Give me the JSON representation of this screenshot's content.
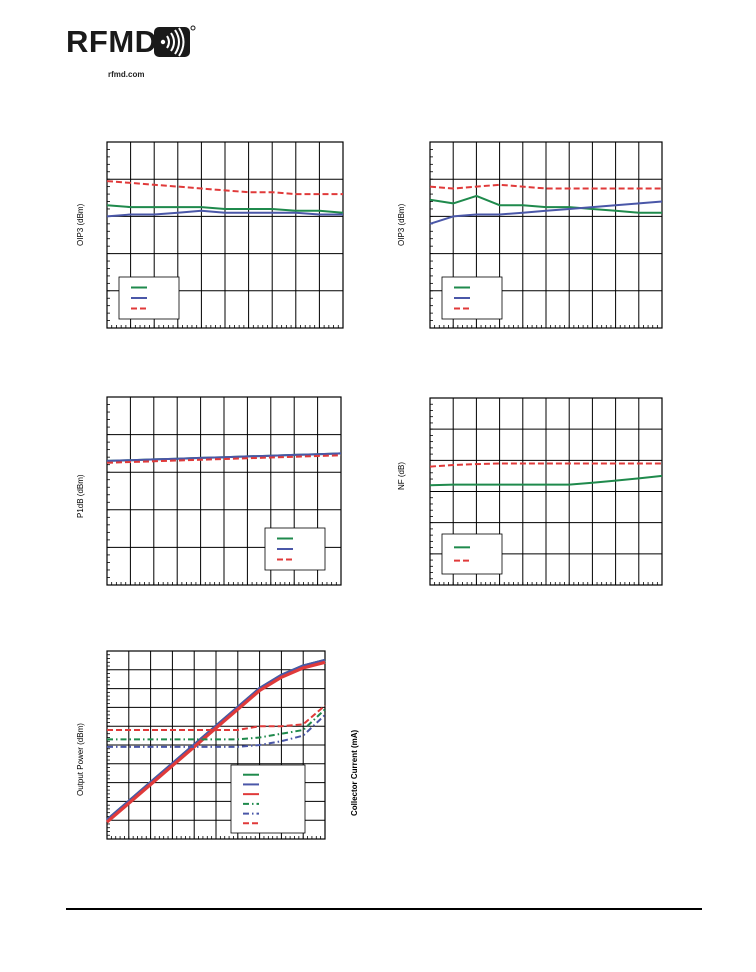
{
  "header": {
    "logo_text": "RFMD",
    "site": "rfmd.com"
  },
  "colors": {
    "green": "#1f8a4c",
    "blue": "#4a57a8",
    "red": "#e03a3a",
    "grid": "#000000"
  },
  "chart_data": [
    {
      "type": "line",
      "ylabel": "OIP3 (dBm)",
      "x": [
        0,
        1,
        2,
        3,
        4,
        5,
        6,
        7,
        8,
        9,
        10
      ],
      "ylim": [
        0,
        10
      ],
      "grid": true,
      "legend": "bottom-left",
      "series": [
        {
          "color": "green",
          "style": "solid",
          "values": [
            6.6,
            6.5,
            6.5,
            6.5,
            6.5,
            6.4,
            6.4,
            6.4,
            6.3,
            6.3,
            6.2
          ]
        },
        {
          "color": "blue",
          "style": "solid",
          "values": [
            6.0,
            6.1,
            6.1,
            6.2,
            6.3,
            6.2,
            6.2,
            6.2,
            6.2,
            6.1,
            6.1
          ]
        },
        {
          "color": "red",
          "style": "dashed",
          "values": [
            7.9,
            7.8,
            7.7,
            7.6,
            7.5,
            7.4,
            7.3,
            7.3,
            7.2,
            7.2,
            7.2
          ]
        }
      ]
    },
    {
      "type": "line",
      "ylabel": "OIP3 (dBm)",
      "x": [
        0,
        1,
        2,
        3,
        4,
        5,
        6,
        7,
        8,
        9,
        10
      ],
      "ylim": [
        0,
        10
      ],
      "grid": true,
      "legend": "bottom-left",
      "series": [
        {
          "color": "green",
          "style": "solid",
          "values": [
            6.9,
            6.7,
            7.1,
            6.6,
            6.6,
            6.5,
            6.5,
            6.4,
            6.3,
            6.2,
            6.2
          ]
        },
        {
          "color": "blue",
          "style": "solid",
          "values": [
            5.6,
            6.0,
            6.1,
            6.1,
            6.2,
            6.3,
            6.4,
            6.5,
            6.6,
            6.7,
            6.8
          ]
        },
        {
          "color": "red",
          "style": "dashed",
          "values": [
            7.6,
            7.5,
            7.6,
            7.7,
            7.6,
            7.5,
            7.5,
            7.5,
            7.5,
            7.5,
            7.5
          ]
        }
      ]
    },
    {
      "type": "line",
      "ylabel": "P1dB (dBm)",
      "x": [
        0,
        1,
        2,
        3,
        4,
        5,
        6,
        7,
        8,
        9,
        10
      ],
      "ylim": [
        0,
        5
      ],
      "grid": true,
      "legend": "bottom-right",
      "series": [
        {
          "color": "green",
          "style": "solid",
          "values": [
            3.3,
            3.32,
            3.34,
            3.36,
            3.38,
            3.4,
            3.42,
            3.44,
            3.46,
            3.48,
            3.5
          ]
        },
        {
          "color": "blue",
          "style": "solid",
          "values": [
            3.3,
            3.32,
            3.34,
            3.36,
            3.38,
            3.4,
            3.42,
            3.44,
            3.46,
            3.48,
            3.5
          ]
        },
        {
          "color": "red",
          "style": "dashed",
          "values": [
            3.25,
            3.27,
            3.29,
            3.31,
            3.33,
            3.35,
            3.37,
            3.39,
            3.41,
            3.43,
            3.45
          ]
        }
      ]
    },
    {
      "type": "line",
      "ylabel": "NF (dB)",
      "x": [
        0,
        1,
        2,
        3,
        4,
        5,
        6,
        7,
        8,
        9,
        10
      ],
      "ylim": [
        0,
        6
      ],
      "grid": true,
      "legend": "bottom-left",
      "series": [
        {
          "color": "green",
          "style": "solid",
          "values": [
            3.2,
            3.22,
            3.22,
            3.22,
            3.22,
            3.22,
            3.22,
            3.28,
            3.35,
            3.42,
            3.5
          ]
        },
        {
          "color": "red",
          "style": "dashed",
          "values": [
            3.8,
            3.85,
            3.88,
            3.9,
            3.9,
            3.9,
            3.9,
            3.9,
            3.9,
            3.9,
            3.9
          ]
        }
      ]
    },
    {
      "type": "line",
      "ylabel": "Output Power (dBm)",
      "y2label": "Collector Current (mA)",
      "x": [
        0,
        1,
        2,
        3,
        4,
        5,
        6,
        7,
        8,
        9,
        10
      ],
      "ylim": [
        0,
        10
      ],
      "grid": true,
      "legend": "bottom-right",
      "series": [
        {
          "color": "green",
          "style": "solid",
          "values": [
            1.0,
            2.0,
            3.0,
            4.0,
            5.0,
            6.0,
            7.0,
            8.0,
            8.7,
            9.2,
            9.5
          ]
        },
        {
          "color": "blue",
          "style": "solid",
          "values": [
            1.0,
            2.0,
            3.0,
            4.0,
            5.0,
            6.0,
            7.0,
            8.0,
            8.7,
            9.2,
            9.5
          ]
        },
        {
          "color": "red",
          "style": "solid",
          "values": [
            0.9,
            1.9,
            2.9,
            3.9,
            4.9,
            5.9,
            6.9,
            7.9,
            8.6,
            9.1,
            9.4
          ]
        },
        {
          "color": "green",
          "style": "dashdot",
          "values": [
            5.3,
            5.3,
            5.3,
            5.3,
            5.3,
            5.3,
            5.3,
            5.4,
            5.6,
            5.8,
            6.9
          ]
        },
        {
          "color": "blue",
          "style": "dashdot",
          "values": [
            4.9,
            4.9,
            4.9,
            4.9,
            4.9,
            4.9,
            4.9,
            5.0,
            5.2,
            5.5,
            6.6
          ]
        },
        {
          "color": "red",
          "style": "dashed",
          "values": [
            5.8,
            5.8,
            5.8,
            5.8,
            5.8,
            5.8,
            5.8,
            6.0,
            6.0,
            6.1,
            7.1
          ]
        }
      ]
    }
  ]
}
